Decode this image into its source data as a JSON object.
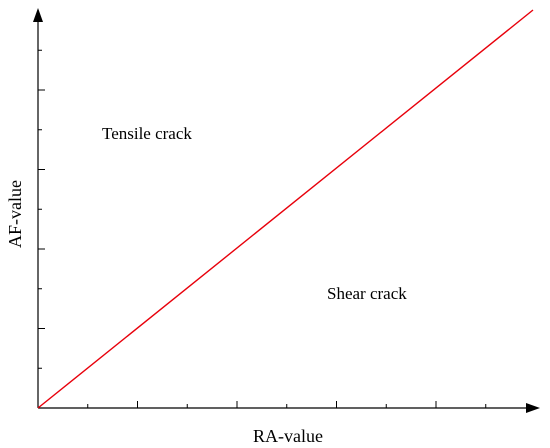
{
  "diagram": {
    "x_axis_label": "RA-value",
    "y_axis_label": "AF-value",
    "regions": {
      "upper_label": "Tensile crack",
      "lower_label": "Shear crack"
    },
    "boundary_color": "#e8000b",
    "axis_color": "#000000",
    "x_axis": {
      "major_ticks": 5,
      "minor_ticks_per_major": 1
    },
    "y_axis": {
      "major_ticks": 5,
      "minor_ticks_per_major": 1
    }
  }
}
